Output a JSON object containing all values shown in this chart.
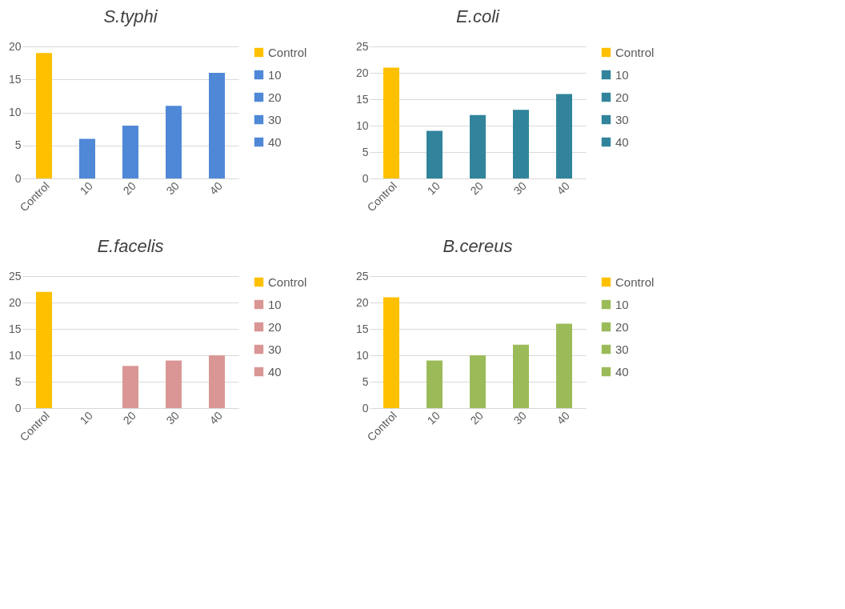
{
  "chart_data": [
    {
      "type": "bar",
      "title": "S.typhi",
      "categories": [
        "Control",
        "10",
        "20",
        "30",
        "40"
      ],
      "series": [
        {
          "name": "Control",
          "color": "#ffc000",
          "values": [
            19,
            null,
            null,
            null,
            null
          ]
        },
        {
          "name": "10",
          "color": "#4f88d6",
          "values": [
            null,
            6,
            null,
            null,
            null
          ]
        },
        {
          "name": "20",
          "color": "#4f88d6",
          "values": [
            null,
            null,
            8,
            null,
            null
          ]
        },
        {
          "name": "30",
          "color": "#4f88d6",
          "values": [
            null,
            null,
            null,
            11,
            null
          ]
        },
        {
          "name": "40",
          "color": "#4f88d6",
          "values": [
            null,
            null,
            null,
            null,
            16
          ]
        }
      ],
      "ylim": [
        0,
        20
      ],
      "yticks": [
        0,
        5,
        10,
        15,
        20
      ],
      "grid": "y",
      "legend": "right"
    },
    {
      "type": "bar",
      "title": "E.coli",
      "categories": [
        "Control",
        "10",
        "20",
        "30",
        "40"
      ],
      "series": [
        {
          "name": "Control",
          "color": "#ffc000",
          "values": [
            21,
            null,
            null,
            null,
            null
          ]
        },
        {
          "name": "10",
          "color": "#31849b",
          "values": [
            null,
            9,
            null,
            null,
            null
          ]
        },
        {
          "name": "20",
          "color": "#31849b",
          "values": [
            null,
            null,
            12,
            null,
            null
          ]
        },
        {
          "name": "30",
          "color": "#31849b",
          "values": [
            null,
            null,
            null,
            13,
            null
          ]
        },
        {
          "name": "40",
          "color": "#31849b",
          "values": [
            null,
            null,
            null,
            null,
            16
          ]
        }
      ],
      "ylim": [
        0,
        25
      ],
      "yticks": [
        0,
        5,
        10,
        15,
        20,
        25
      ],
      "grid": "y",
      "legend": "right"
    },
    {
      "type": "bar",
      "title": "E.facelis",
      "categories": [
        "Control",
        "10",
        "20",
        "30",
        "40"
      ],
      "series": [
        {
          "name": "Control",
          "color": "#ffc000",
          "values": [
            22,
            null,
            null,
            null,
            null
          ]
        },
        {
          "name": "10",
          "color": "#d99694",
          "values": [
            null,
            0,
            null,
            null,
            null
          ]
        },
        {
          "name": "20",
          "color": "#d99694",
          "values": [
            null,
            null,
            8,
            null,
            null
          ]
        },
        {
          "name": "30",
          "color": "#d99694",
          "values": [
            null,
            null,
            null,
            9,
            null
          ]
        },
        {
          "name": "40",
          "color": "#d99694",
          "values": [
            null,
            null,
            null,
            null,
            10
          ]
        }
      ],
      "ylim": [
        0,
        25
      ],
      "yticks": [
        0,
        5,
        10,
        15,
        20,
        25
      ],
      "grid": "y",
      "legend": "right"
    },
    {
      "type": "bar",
      "title": "B.cereus",
      "categories": [
        "Control",
        "10",
        "20",
        "30",
        "40"
      ],
      "series": [
        {
          "name": "Control",
          "color": "#ffc000",
          "values": [
            21,
            null,
            null,
            null,
            null
          ]
        },
        {
          "name": "10",
          "color": "#9bbb59",
          "values": [
            null,
            9,
            null,
            null,
            null
          ]
        },
        {
          "name": "20",
          "color": "#9bbb59",
          "values": [
            null,
            null,
            10,
            null,
            null
          ]
        },
        {
          "name": "30",
          "color": "#9bbb59",
          "values": [
            null,
            null,
            null,
            12,
            null
          ]
        },
        {
          "name": "40",
          "color": "#9bbb59",
          "values": [
            null,
            null,
            null,
            null,
            16
          ]
        }
      ],
      "ylim": [
        0,
        25
      ],
      "yticks": [
        0,
        5,
        10,
        15,
        20,
        25
      ],
      "grid": "y",
      "legend": "right"
    }
  ]
}
